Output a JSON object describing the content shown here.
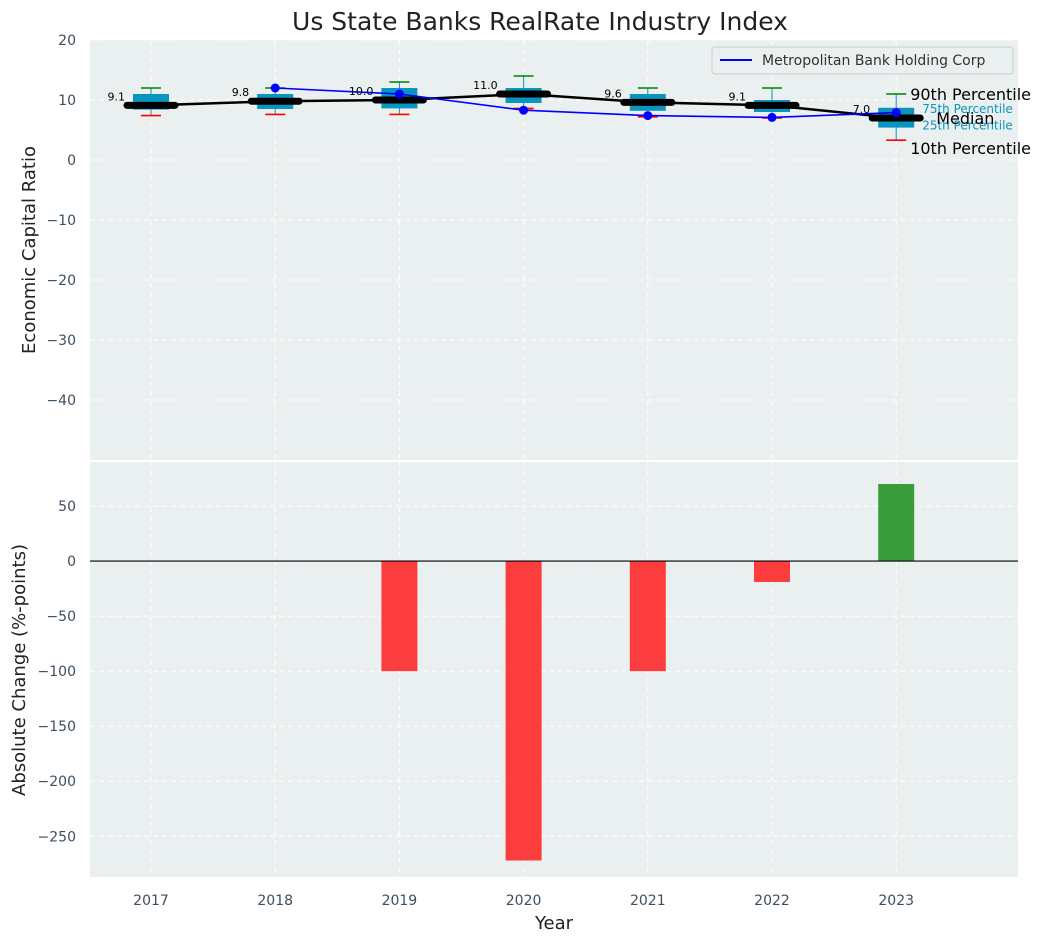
{
  "chart_data": [
    {
      "type": "box-line",
      "title": "Us State Banks RealRate Industry Index",
      "xlabel": "",
      "ylabel": "Economic Capital Ratio",
      "ylim": [
        -50,
        20
      ],
      "yticks": [
        20,
        10,
        0,
        -10,
        -20,
        -30,
        -40
      ],
      "yticklabels": [
        "20",
        "10",
        "0",
        "−10",
        "−20",
        "−30",
        "−40"
      ],
      "categories": [
        "2017",
        "2018",
        "2019",
        "2020",
        "2021",
        "2022",
        "2023"
      ],
      "percentiles": {
        "p10": [
          7.4,
          7.6,
          7.6,
          8.6,
          7.2,
          7.0,
          3.3
        ],
        "p25": [
          8.4,
          8.5,
          8.6,
          9.5,
          8.2,
          8.0,
          5.4
        ],
        "median": [
          9.1,
          9.8,
          10.0,
          11.0,
          9.6,
          9.1,
          7.0
        ],
        "p75": [
          11.0,
          11.0,
          12.0,
          12.0,
          11.0,
          10.0,
          8.7
        ],
        "p90": [
          12.0,
          12.0,
          13.0,
          14.0,
          12.0,
          12.0,
          11.0
        ]
      },
      "median_labels": [
        "9.1",
        "9.8",
        "10.0",
        "11.0",
        "9.6",
        "9.1",
        "7.0"
      ],
      "series": [
        {
          "name": "Metropolitan Bank Holding Corp",
          "color": "#0000ff",
          "points": [
            {
              "x": "2018",
              "y": 12.0
            },
            {
              "x": "2019",
              "y": 11.0
            },
            {
              "x": "2020",
              "y": 8.3
            },
            {
              "x": "2021",
              "y": 7.4
            },
            {
              "x": "2022",
              "y": 7.1
            },
            {
              "x": "2023",
              "y": 7.9
            }
          ]
        }
      ],
      "legend": {
        "position": "top-right"
      },
      "annotations": {
        "p90": "90th Percentile",
        "p75": "75th Percentile",
        "median": "Median",
        "p25": "25th Percentile",
        "p10": "10th Percentile"
      },
      "colors": {
        "box": "#0a95c0",
        "median": "#000000",
        "p90_cap": "#008000",
        "p10_cap": "#ff0000",
        "background": "#eaeff0"
      }
    },
    {
      "type": "bar",
      "title": "",
      "xlabel": "Year",
      "ylabel": "Absolute Change (%-points)",
      "ylim": [
        -287,
        90
      ],
      "yticks": [
        50,
        0,
        -50,
        -100,
        -150,
        -200,
        -250
      ],
      "yticklabels": [
        "50",
        "0",
        "−50",
        "−100",
        "−150",
        "−200",
        "−250"
      ],
      "categories": [
        "2017",
        "2018",
        "2019",
        "2020",
        "2021",
        "2022",
        "2023"
      ],
      "values": [
        0,
        0,
        -100,
        -272,
        -100,
        -19,
        70
      ],
      "colors": {
        "positive": "#3a9b3b",
        "negative": "#fd3d3d"
      }
    }
  ]
}
